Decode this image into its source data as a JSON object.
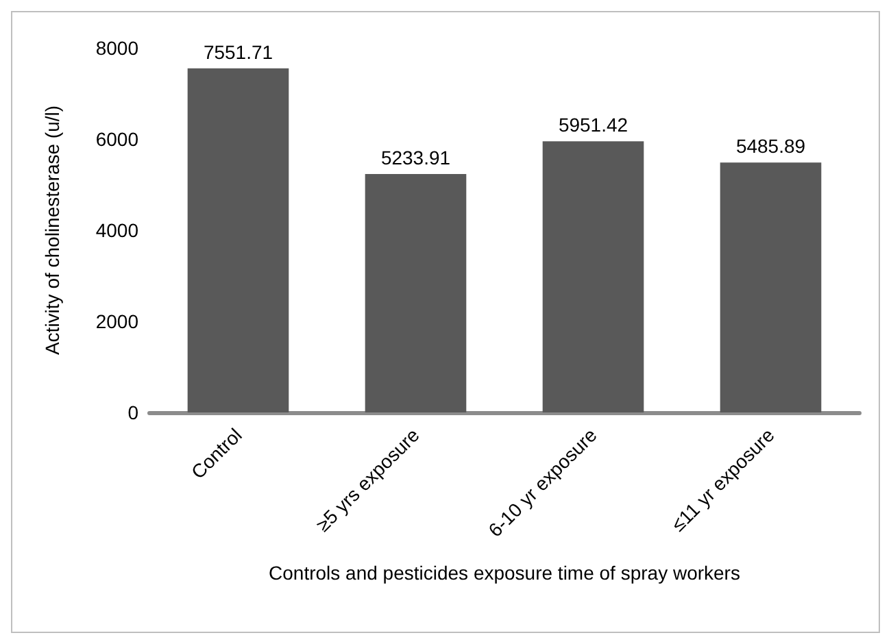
{
  "chart_data": {
    "type": "bar",
    "xlabel": "Controls and pesticides exposure time of spray workers",
    "ylabel": "Activity of cholinesterase (u/l)",
    "categories": [
      "Control",
      "≥5 yrs exposure",
      "6-10 yr exposure",
      "≤11 yr exposure"
    ],
    "values": [
      7551.71,
      5233.91,
      5951.42,
      5485.89
    ],
    "color": "#595959",
    "ylim": [
      0,
      8000
    ],
    "yticks": [
      0,
      2000,
      4000,
      6000,
      8000
    ],
    "grid": false,
    "data_labels": true
  }
}
